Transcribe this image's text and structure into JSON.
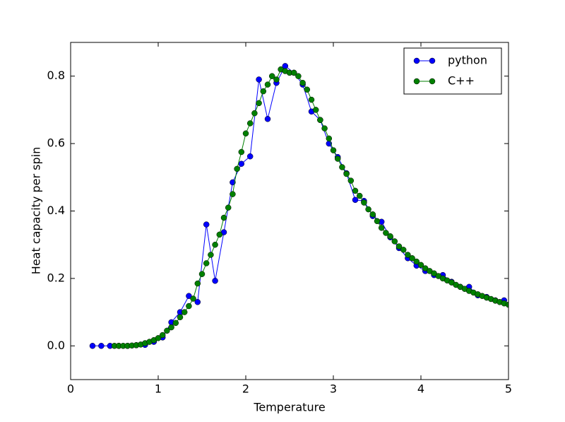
{
  "chart_data": {
    "type": "line",
    "xlabel": "Temperature",
    "ylabel": "Heat capacity per spin",
    "xlim": [
      0,
      5
    ],
    "ylim": [
      -0.1,
      0.9
    ],
    "xticks": [
      0,
      1,
      2,
      3,
      4,
      5
    ],
    "yticks": [
      {
        "value": 0,
        "label": "0.0"
      },
      0.2,
      0.4,
      0.6,
      0.8
    ],
    "legend": "upper right",
    "series": [
      {
        "name": "python",
        "color": "#0000ff",
        "x": [
          0.25,
          0.35,
          0.45,
          0.55,
          0.65,
          0.75,
          0.85,
          0.95,
          1.05,
          1.15,
          1.25,
          1.35,
          1.45,
          1.55,
          1.65,
          1.75,
          1.85,
          1.95,
          2.05,
          2.15,
          2.25,
          2.35,
          2.45,
          2.55,
          2.65,
          2.75,
          2.85,
          2.95,
          3.05,
          3.15,
          3.25,
          3.35,
          3.45,
          3.55,
          3.65,
          3.75,
          3.85,
          3.95,
          4.05,
          4.15,
          4.25,
          4.35,
          4.45,
          4.55,
          4.65,
          4.75,
          4.85,
          4.95
        ],
        "values": [
          0,
          0,
          0,
          0,
          0,
          0.002,
          0.003,
          0.012,
          0.025,
          0.07,
          0.1,
          0.148,
          0.13,
          0.36,
          0.193,
          0.337,
          0.485,
          0.54,
          0.562,
          0.79,
          0.673,
          0.78,
          0.83,
          0.81,
          0.775,
          0.695,
          0.67,
          0.6,
          0.56,
          0.512,
          0.433,
          0.43,
          0.385,
          0.368,
          0.322,
          0.29,
          0.26,
          0.238,
          0.222,
          0.21,
          0.21,
          0.19,
          0.175,
          0.175,
          0.15,
          0.145,
          0.135,
          0.135
        ]
      },
      {
        "name": "C++",
        "color": "#008000",
        "x": [
          0.5,
          0.55,
          0.6,
          0.65,
          0.7,
          0.75,
          0.8,
          0.85,
          0.9,
          0.95,
          1.0,
          1.05,
          1.1,
          1.15,
          1.2,
          1.25,
          1.3,
          1.35,
          1.4,
          1.45,
          1.5,
          1.55,
          1.6,
          1.65,
          1.7,
          1.75,
          1.8,
          1.85,
          1.9,
          1.95,
          2.0,
          2.05,
          2.1,
          2.15,
          2.2,
          2.25,
          2.3,
          2.35,
          2.4,
          2.45,
          2.5,
          2.55,
          2.6,
          2.65,
          2.7,
          2.75,
          2.8,
          2.85,
          2.9,
          2.95,
          3.0,
          3.05,
          3.1,
          3.15,
          3.2,
          3.25,
          3.3,
          3.35,
          3.4,
          3.45,
          3.5,
          3.55,
          3.6,
          3.65,
          3.7,
          3.75,
          3.8,
          3.85,
          3.9,
          3.95,
          4.0,
          4.05,
          4.1,
          4.15,
          4.2,
          4.25,
          4.3,
          4.35,
          4.4,
          4.45,
          4.5,
          4.55,
          4.6,
          4.65,
          4.7,
          4.75,
          4.8,
          4.85,
          4.9,
          4.95,
          5.0
        ],
        "values": [
          0,
          0,
          0,
          0,
          0.001,
          0.002,
          0.004,
          0.008,
          0.012,
          0.017,
          0.023,
          0.032,
          0.045,
          0.055,
          0.068,
          0.085,
          0.1,
          0.118,
          0.14,
          0.185,
          0.213,
          0.245,
          0.27,
          0.3,
          0.33,
          0.38,
          0.41,
          0.45,
          0.525,
          0.575,
          0.63,
          0.66,
          0.69,
          0.72,
          0.755,
          0.775,
          0.8,
          0.79,
          0.82,
          0.815,
          0.81,
          0.81,
          0.8,
          0.78,
          0.76,
          0.73,
          0.7,
          0.67,
          0.645,
          0.615,
          0.58,
          0.555,
          0.53,
          0.51,
          0.49,
          0.46,
          0.445,
          0.425,
          0.405,
          0.39,
          0.37,
          0.35,
          0.335,
          0.325,
          0.31,
          0.295,
          0.285,
          0.27,
          0.26,
          0.25,
          0.24,
          0.23,
          0.222,
          0.215,
          0.207,
          0.2,
          0.194,
          0.188,
          0.181,
          0.175,
          0.169,
          0.163,
          0.158,
          0.153,
          0.148,
          0.143,
          0.139,
          0.134,
          0.13,
          0.126,
          0.122
        ]
      }
    ]
  }
}
